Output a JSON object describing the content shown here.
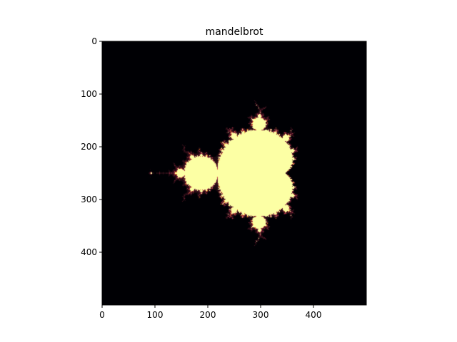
{
  "chart_data": {
    "type": "heatmap",
    "title": "mandelbrot",
    "xlabel": "",
    "ylabel": "",
    "image_size": [
      500,
      500
    ],
    "xlim": [
      0,
      500
    ],
    "ylim": [
      500,
      0
    ],
    "x_ticks": [
      0,
      100,
      200,
      300,
      400
    ],
    "y_ticks": [
      0,
      100,
      200,
      300,
      400
    ],
    "x_tick_labels": [
      "0",
      "100",
      "200",
      "300",
      "400"
    ],
    "y_tick_labels": [
      "0",
      "100",
      "200",
      "300",
      "400"
    ],
    "origin": "upper",
    "grid": false,
    "colormap": "inferno",
    "colors": {
      "background": "#000004",
      "set_fill": "#fcffa4",
      "edge_mid": "#bc3754",
      "edge_hot": "#f98e09"
    },
    "mandelbrot_params": {
      "real_range": [
        -2.5,
        1.5
      ],
      "imag_range": [
        -2.0,
        2.0
      ],
      "max_iter": 64
    }
  }
}
